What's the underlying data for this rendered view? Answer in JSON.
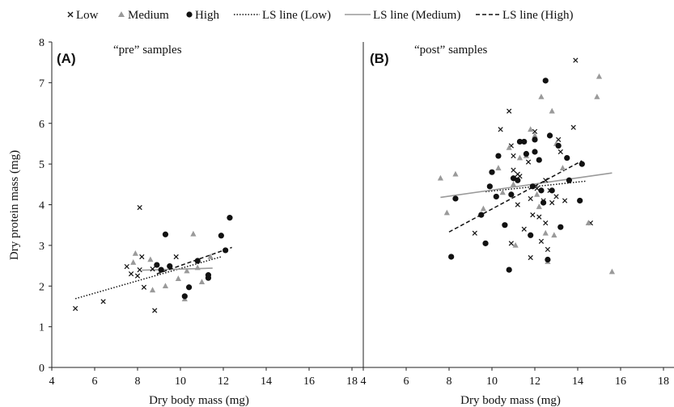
{
  "legend": {
    "low": "Low",
    "medium": "Medium",
    "high": "High",
    "ls_low": "LS line (Low)",
    "ls_medium": "LS line (Medium)",
    "ls_high": "LS line (High)"
  },
  "colors": {
    "low": "#111111",
    "medium": "#9a9a9a",
    "high": "#111111",
    "axis": "#222222"
  },
  "chart_data": [
    {
      "type": "scatter",
      "panel_label": "(A)",
      "title": "“pre” samples",
      "xlabel": "Dry body mass (mg)",
      "ylabel": "Dry protein mass (mg)",
      "xlim": [
        4,
        18
      ],
      "ylim": [
        0,
        8
      ],
      "xticks": [
        "4",
        "6",
        "8",
        "10",
        "12",
        "14",
        "16",
        "18"
      ],
      "yticks": [
        "0",
        "1",
        "2",
        "3",
        "4",
        "5",
        "6",
        "7",
        "8"
      ],
      "series": [
        {
          "name": "Low",
          "marker": "x",
          "points": [
            [
              5.1,
              1.45
            ],
            [
              6.4,
              1.62
            ],
            [
              7.5,
              2.48
            ],
            [
              7.7,
              2.3
            ],
            [
              8.0,
              2.25
            ],
            [
              8.1,
              3.93
            ],
            [
              8.1,
              2.4
            ],
            [
              8.2,
              2.72
            ],
            [
              8.3,
              1.97
            ],
            [
              8.7,
              2.42
            ],
            [
              8.8,
              1.4
            ],
            [
              9.8,
              2.72
            ]
          ]
        },
        {
          "name": "Medium",
          "marker": "triangle",
          "points": [
            [
              7.8,
              2.58
            ],
            [
              7.9,
              2.8
            ],
            [
              8.6,
              2.65
            ],
            [
              8.7,
              1.9
            ],
            [
              9.3,
              2.0
            ],
            [
              9.9,
              2.18
            ],
            [
              10.2,
              1.68
            ],
            [
              10.3,
              2.37
            ],
            [
              10.6,
              3.28
            ],
            [
              10.8,
              2.45
            ],
            [
              11.0,
              2.1
            ],
            [
              11.4,
              2.72
            ]
          ]
        },
        {
          "name": "High",
          "marker": "circle",
          "points": [
            [
              8.9,
              2.52
            ],
            [
              9.1,
              2.4
            ],
            [
              9.3,
              3.27
            ],
            [
              9.5,
              2.49
            ],
            [
              10.2,
              1.75
            ],
            [
              10.4,
              1.97
            ],
            [
              10.8,
              2.62
            ],
            [
              11.3,
              2.27
            ],
            [
              11.3,
              2.2
            ],
            [
              11.9,
              3.24
            ],
            [
              12.1,
              2.88
            ],
            [
              12.3,
              3.68
            ]
          ]
        }
      ],
      "ls_lines": [
        {
          "name": "LS line (Low)",
          "x": [
            5.1,
            11.9
          ],
          "y": [
            1.69,
            2.72
          ]
        },
        {
          "name": "LS line (Medium)",
          "x": [
            8.2,
            11.5
          ],
          "y": [
            2.39,
            2.44
          ]
        },
        {
          "name": "LS line (High)",
          "x": [
            8.9,
            12.4
          ],
          "y": [
            2.3,
            2.95
          ]
        }
      ]
    },
    {
      "type": "scatter",
      "panel_label": "(B)",
      "title": "“post” samples",
      "xlabel": "Dry body mass (mg)",
      "xlim": [
        4,
        18
      ],
      "ylim": [
        0,
        8
      ],
      "xticks": [
        "4",
        "6",
        "8",
        "10",
        "12",
        "14",
        "16",
        "18"
      ],
      "series": [
        {
          "name": "Low",
          "marker": "x",
          "points": [
            [
              9.2,
              3.3
            ],
            [
              10.4,
              5.85
            ],
            [
              10.8,
              6.3
            ],
            [
              10.9,
              5.45
            ],
            [
              11.0,
              5.2
            ],
            [
              11.0,
              4.85
            ],
            [
              11.2,
              4.75
            ],
            [
              11.3,
              4.7
            ],
            [
              11.2,
              4.0
            ],
            [
              10.9,
              3.05
            ],
            [
              11.5,
              3.4
            ],
            [
              11.7,
              5.05
            ],
            [
              11.8,
              4.15
            ],
            [
              11.8,
              2.7
            ],
            [
              11.9,
              3.75
            ],
            [
              12.0,
              5.8
            ],
            [
              12.1,
              4.4
            ],
            [
              12.2,
              3.7
            ],
            [
              12.3,
              3.1
            ],
            [
              12.4,
              4.1
            ],
            [
              12.5,
              3.55
            ],
            [
              12.6,
              2.9
            ],
            [
              12.7,
              4.35
            ],
            [
              12.8,
              4.05
            ],
            [
              13.0,
              4.2
            ],
            [
              13.1,
              5.6
            ],
            [
              13.2,
              5.3
            ],
            [
              13.4,
              4.1
            ],
            [
              13.8,
              5.9
            ],
            [
              13.9,
              7.55
            ],
            [
              14.6,
              3.55
            ],
            [
              12.5,
              4.6
            ]
          ]
        },
        {
          "name": "Medium",
          "marker": "triangle",
          "points": [
            [
              7.6,
              4.65
            ],
            [
              7.9,
              3.8
            ],
            [
              8.3,
              4.75
            ],
            [
              9.6,
              3.9
            ],
            [
              10.3,
              4.9
            ],
            [
              10.5,
              4.3
            ],
            [
              10.8,
              5.4
            ],
            [
              11.0,
              4.5
            ],
            [
              11.3,
              5.15
            ],
            [
              11.6,
              5.2
            ],
            [
              11.8,
              5.85
            ],
            [
              12.0,
              5.7
            ],
            [
              12.1,
              4.25
            ],
            [
              12.2,
              3.95
            ],
            [
              12.3,
              6.65
            ],
            [
              12.5,
              3.3
            ],
            [
              12.6,
              2.6
            ],
            [
              12.8,
              6.3
            ],
            [
              13.0,
              5.5
            ],
            [
              13.3,
              4.9
            ],
            [
              14.5,
              3.55
            ],
            [
              14.9,
              6.65
            ],
            [
              15.0,
              7.15
            ],
            [
              15.6,
              2.35
            ],
            [
              11.1,
              3.0
            ],
            [
              12.9,
              3.25
            ]
          ]
        },
        {
          "name": "High",
          "marker": "circle",
          "points": [
            [
              8.1,
              2.72
            ],
            [
              8.3,
              4.15
            ],
            [
              9.5,
              3.75
            ],
            [
              9.7,
              3.05
            ],
            [
              9.9,
              4.45
            ],
            [
              10.0,
              4.8
            ],
            [
              10.2,
              4.2
            ],
            [
              10.3,
              5.2
            ],
            [
              10.6,
              3.5
            ],
            [
              10.8,
              2.4
            ],
            [
              10.9,
              4.25
            ],
            [
              11.0,
              4.65
            ],
            [
              11.2,
              4.6
            ],
            [
              11.3,
              5.55
            ],
            [
              11.5,
              5.55
            ],
            [
              11.6,
              5.25
            ],
            [
              11.8,
              3.25
            ],
            [
              11.9,
              4.45
            ],
            [
              12.0,
              5.6
            ],
            [
              12.2,
              5.1
            ],
            [
              12.3,
              4.35
            ],
            [
              12.4,
              4.05
            ],
            [
              12.5,
              7.05
            ],
            [
              12.6,
              2.65
            ],
            [
              12.7,
              5.7
            ],
            [
              12.8,
              4.35
            ],
            [
              13.1,
              5.45
            ],
            [
              13.2,
              3.45
            ],
            [
              13.5,
              5.15
            ],
            [
              13.6,
              4.6
            ],
            [
              14.1,
              4.1
            ],
            [
              14.2,
              5.0
            ],
            [
              12.0,
              5.3
            ]
          ]
        }
      ],
      "ls_lines": [
        {
          "name": "LS line (Low)",
          "x": [
            9.7,
            14.4
          ],
          "y": [
            4.32,
            4.58
          ]
        },
        {
          "name": "LS line (Medium)",
          "x": [
            7.6,
            15.6
          ],
          "y": [
            4.18,
            4.78
          ]
        },
        {
          "name": "LS line (High)",
          "x": [
            8.0,
            14.2
          ],
          "y": [
            3.33,
            5.08
          ]
        }
      ]
    }
  ]
}
